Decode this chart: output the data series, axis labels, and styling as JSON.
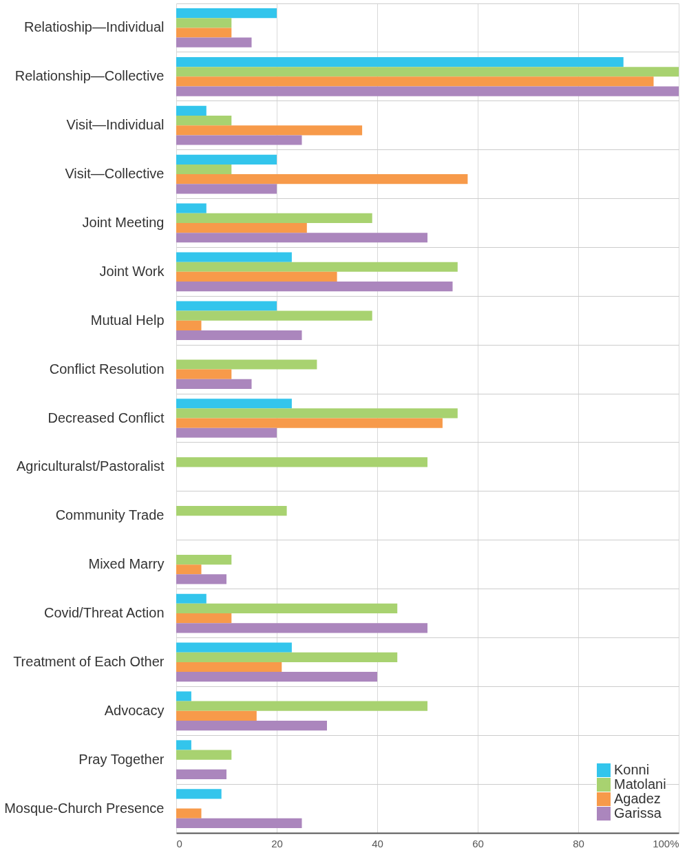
{
  "chart_data": {
    "type": "bar",
    "orientation": "horizontal",
    "categories": [
      "Relatioship—Individual",
      "Relationship—Collective",
      "Visit—Individual",
      "Visit—Collective",
      "Joint Meeting",
      "Joint Work",
      "Mutual Help",
      "Conflict Resolution",
      "Decreased Conflict",
      "Agriculturalst/Pastoralist",
      "Community Trade",
      "Mixed Marry",
      "Covid/Threat Action",
      "Treatment of Each Other",
      "Advocacy",
      "Pray Together",
      "Mosque-Church Presence"
    ],
    "series": [
      {
        "name": "Konni",
        "color": "#33c5ec",
        "values": [
          20,
          89,
          6,
          20,
          6,
          23,
          20,
          null,
          23,
          null,
          null,
          null,
          6,
          23,
          3,
          3,
          9
        ]
      },
      {
        "name": "Matolani",
        "color": "#a8d270",
        "values": [
          11,
          100,
          11,
          11,
          39,
          56,
          39,
          28,
          56,
          50,
          22,
          11,
          44,
          44,
          50,
          11,
          null
        ]
      },
      {
        "name": "Agadez",
        "color": "#f79a4a",
        "values": [
          11,
          95,
          37,
          58,
          26,
          32,
          5,
          11,
          53,
          null,
          null,
          5,
          11,
          21,
          16,
          null,
          5
        ]
      },
      {
        "name": "Garissa",
        "color": "#ab86bd",
        "values": [
          15,
          100,
          25,
          20,
          50,
          55,
          25,
          15,
          20,
          null,
          null,
          10,
          50,
          40,
          30,
          10,
          25
        ]
      }
    ],
    "xlim": [
      0,
      100
    ],
    "xticks": [
      0,
      20,
      40,
      60,
      80,
      {
        "value": 100,
        "label": "100%"
      }
    ],
    "grid": true,
    "legend": "bottom right"
  }
}
